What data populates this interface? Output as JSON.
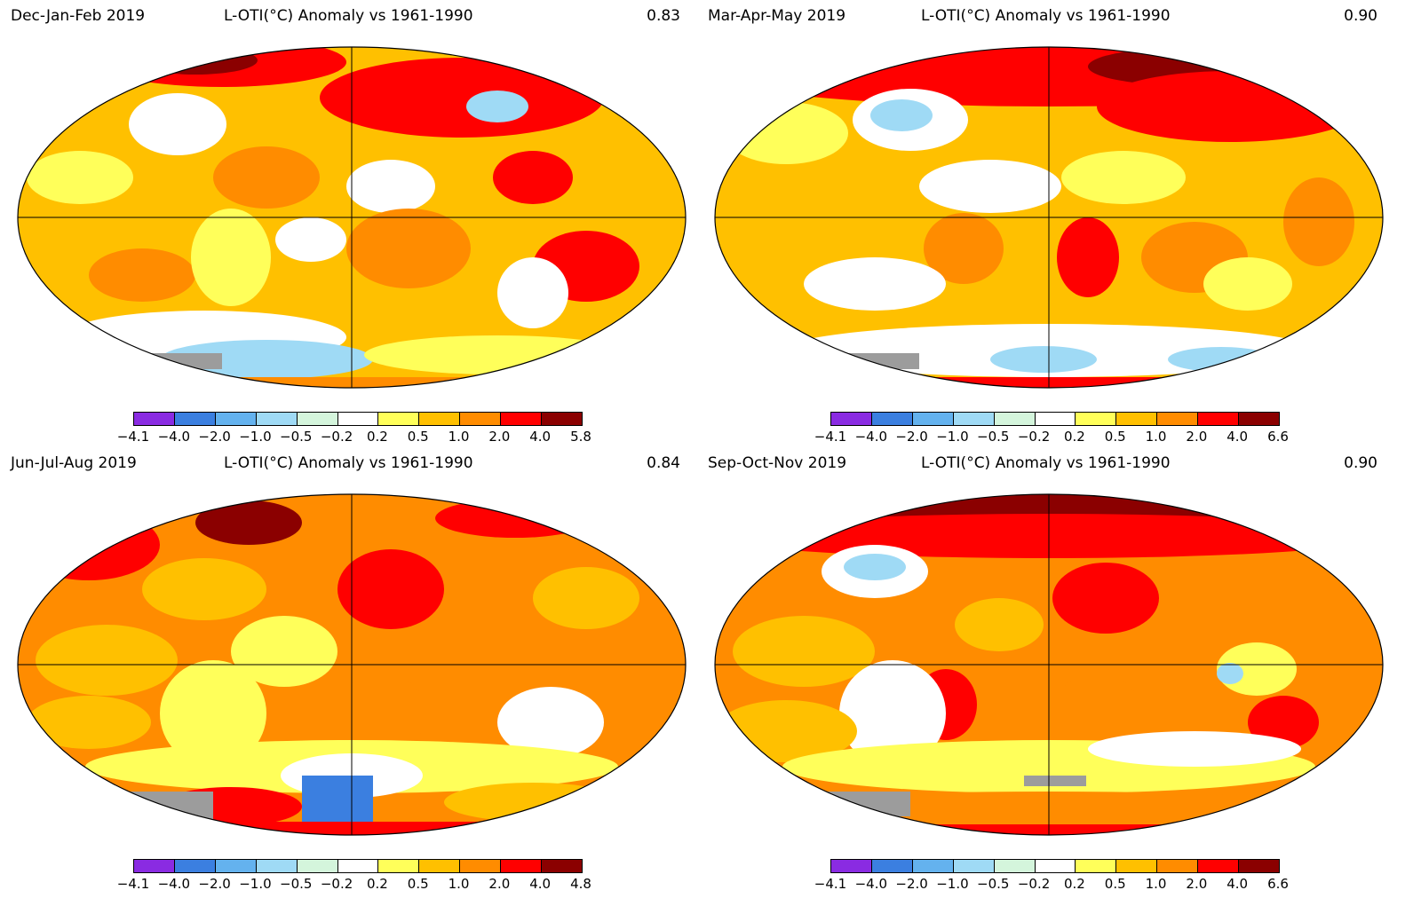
{
  "title": "L-OTI(°C) Anomaly vs 1961-1990",
  "bin_colors": [
    "#8a2be2",
    "#3b7fe0",
    "#64b2ee",
    "#9fdaf5",
    "#d4f5dc",
    "#ffffff",
    "#ffff5a",
    "#ffc000",
    "#ff8c00",
    "#ff0000",
    "#8b0000"
  ],
  "colors": {
    "gray": "#9c9c9c",
    "border": "#000000"
  },
  "panels": [
    {
      "id": "djf",
      "season": "Dec-Jan-Feb 2019",
      "global_mean": "0.83",
      "colorbar_ticks": [
        "−4.1",
        "−4.0",
        "−2.0",
        "−1.0",
        "−0.5",
        "−0.2",
        "0.2",
        "0.5",
        "1.0",
        "2.0",
        "4.0",
        "5.8"
      ]
    },
    {
      "id": "mam",
      "season": "Mar-Apr-May 2019",
      "global_mean": "0.90",
      "colorbar_ticks": [
        "−4.1",
        "−4.0",
        "−2.0",
        "−1.0",
        "−0.5",
        "−0.2",
        "0.2",
        "0.5",
        "1.0",
        "2.0",
        "4.0",
        "6.6"
      ]
    },
    {
      "id": "jja",
      "season": "Jun-Jul-Aug 2019",
      "global_mean": "0.84",
      "colorbar_ticks": [
        "−4.1",
        "−4.0",
        "−2.0",
        "−1.0",
        "−0.5",
        "−0.2",
        "0.2",
        "0.5",
        "1.0",
        "2.0",
        "4.0",
        "4.8"
      ]
    },
    {
      "id": "son",
      "season": "Sep-Oct-Nov 2019",
      "global_mean": "0.90",
      "colorbar_ticks": [
        "−4.1",
        "−4.0",
        "−2.0",
        "−1.0",
        "−0.5",
        "−0.2",
        "0.2",
        "0.5",
        "1.0",
        "2.0",
        "4.0",
        "6.6"
      ]
    }
  ]
}
